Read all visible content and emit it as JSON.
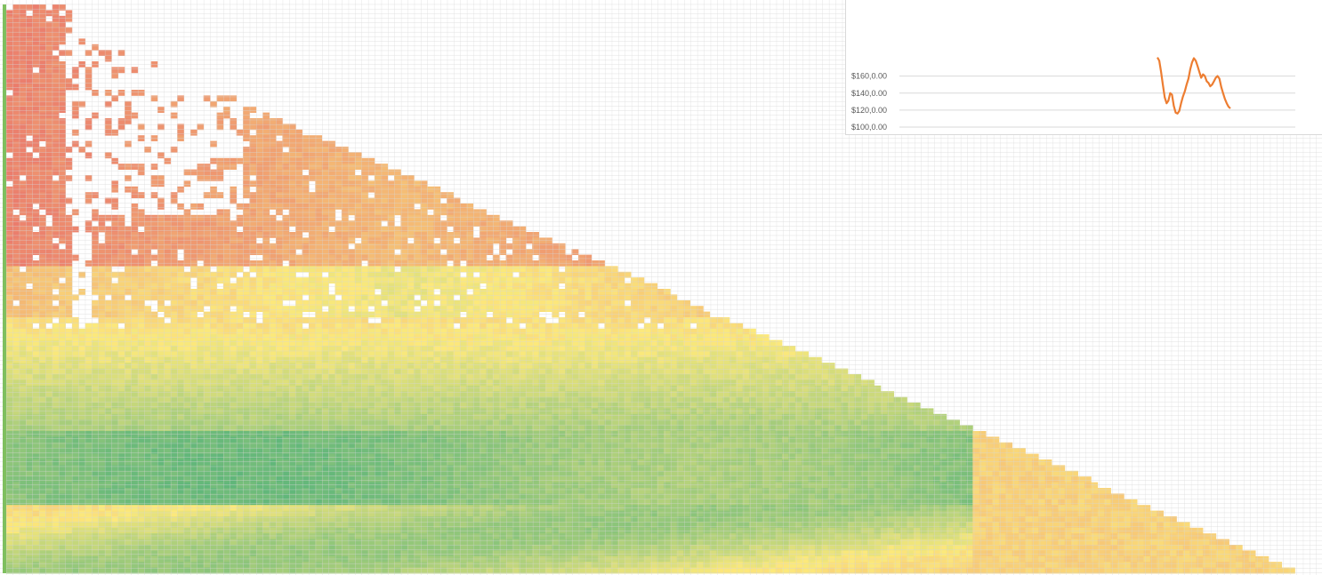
{
  "colors": {
    "heat_low": "#e9726b",
    "heat_mid": "#fce97b",
    "heat_high": "#5cb57a",
    "grid": "#d6d6d6",
    "line": "#ed7d31",
    "chart_grid": "#d9d9d9"
  },
  "chart_data": [
    {
      "type": "heatmap",
      "x_columns": 200,
      "y_rows": 100,
      "color_scale": [
        "#e9726b",
        "#fce97b",
        "#5cb57a"
      ],
      "pattern": "triangular heatmap; upper-right triangle blank; green band near rows 70-85, yellow bands around it, red at top-left regions"
    },
    {
      "type": "line",
      "yticks": [
        "$100,0.00",
        "$120,0.00",
        "$140,0.00",
        "$160,0.00"
      ],
      "ylim": [
        100,
        180
      ],
      "x": [
        0,
        1,
        2,
        3,
        4,
        5,
        6,
        7,
        8,
        9,
        10,
        11,
        12,
        13,
        14,
        15,
        16,
        17,
        18,
        19,
        20,
        21,
        22,
        23,
        24,
        25,
        26,
        27,
        28,
        29,
        30,
        31,
        32,
        33,
        34,
        35,
        36,
        37,
        38,
        39,
        40
      ],
      "values": [
        182,
        178,
        165,
        150,
        135,
        128,
        131,
        140,
        138,
        125,
        117,
        116,
        119,
        128,
        136,
        142,
        150,
        157,
        168,
        176,
        181,
        178,
        172,
        165,
        158,
        162,
        160,
        154,
        152,
        148,
        150,
        154,
        158,
        160,
        157,
        147,
        140,
        133,
        128,
        124,
        122
      ]
    }
  ]
}
